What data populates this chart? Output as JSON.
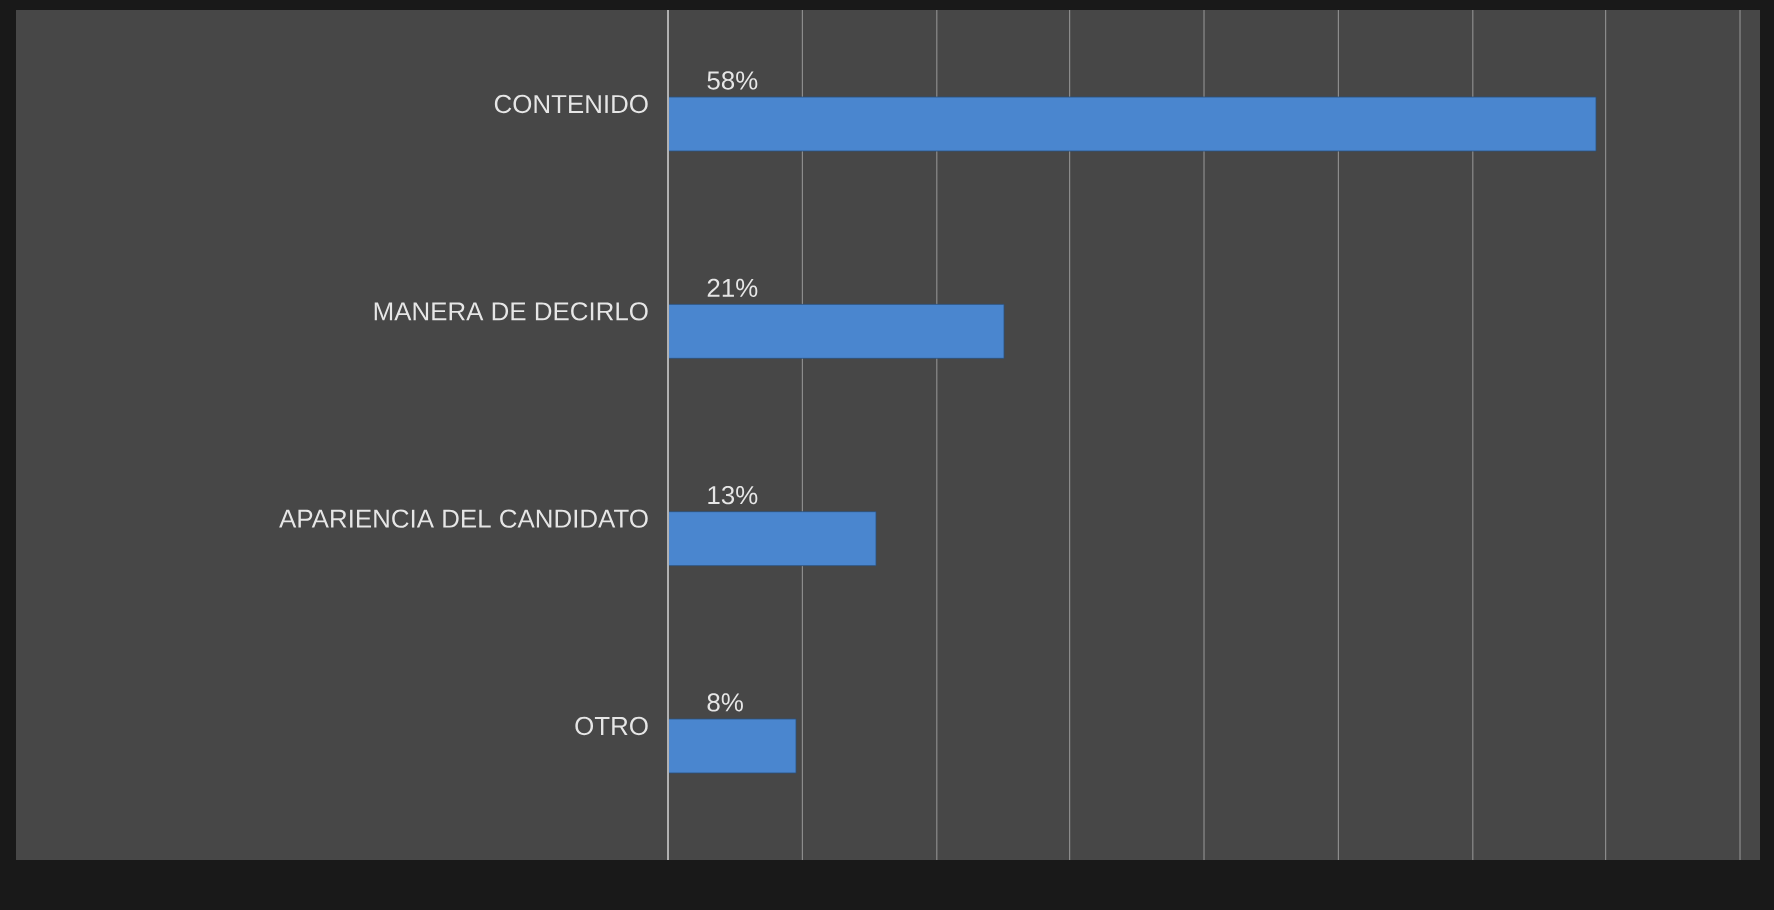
{
  "chart_data": {
    "type": "bar",
    "orientation": "horizontal",
    "categories": [
      "CONTENIDO",
      "MANERA DE DECIRLO",
      "APARIENCIA DEL CANDIDATO",
      "OTRO"
    ],
    "values": [
      58,
      21,
      13,
      8
    ],
    "value_labels": [
      "58%",
      "21%",
      "13%",
      "8%"
    ],
    "color": "#4a86cf",
    "xlim": [
      0,
      67
    ],
    "xticks": [
      {
        "value": 8.4,
        "label": null
      },
      {
        "value": 16.8,
        "label": null
      },
      {
        "value": 25.1,
        "label": null
      },
      {
        "value": 33.5,
        "label": null
      },
      {
        "value": 41.9,
        "label": null
      },
      {
        "value": 50.3,
        "label": null
      },
      {
        "value": 58.6,
        "label": null
      },
      {
        "value": 67,
        "label": null
      }
    ],
    "grid": "x"
  }
}
